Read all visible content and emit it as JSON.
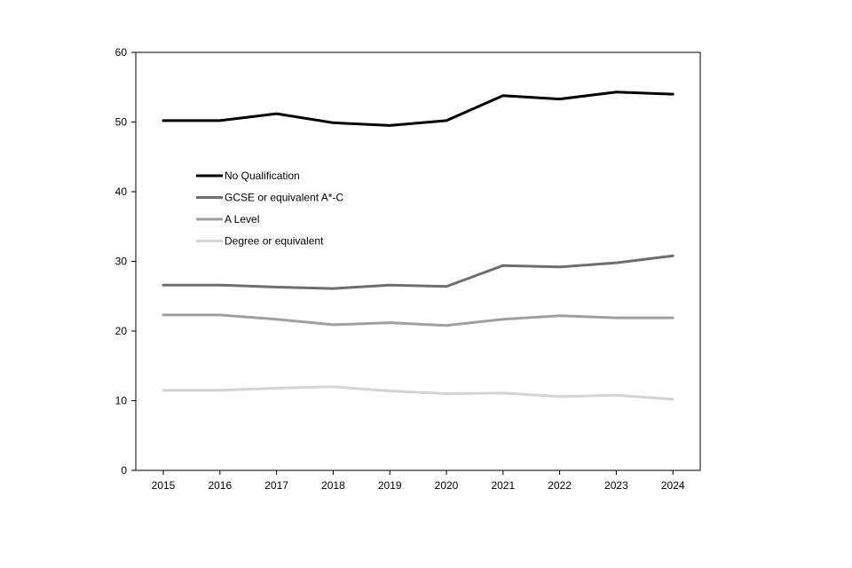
{
  "chart_data": {
    "type": "line",
    "title": "",
    "xlabel": "",
    "ylabel": "",
    "x": [
      "2015",
      "2016",
      "2017",
      "2018",
      "2019",
      "2020",
      "2021",
      "2022",
      "2023",
      "2024"
    ],
    "ylim": [
      0,
      60
    ],
    "yticks": [
      0,
      10,
      20,
      30,
      40,
      50,
      60
    ],
    "grid": false,
    "legend_position": "upper-left inside",
    "series": [
      {
        "name": "No Qualification",
        "color": "#000000",
        "values": [
          50.2,
          50.2,
          51.2,
          49.9,
          49.5,
          50.2,
          53.8,
          53.3,
          54.3,
          54.0
        ]
      },
      {
        "name": "GCSE or equivalent A*-C",
        "color": "#6e6e6e",
        "values": [
          26.6,
          26.6,
          26.3,
          26.1,
          26.6,
          26.4,
          29.4,
          29.2,
          29.8,
          30.8
        ]
      },
      {
        "name": "A Level",
        "color": "#a0a0a0",
        "values": [
          22.3,
          22.3,
          21.7,
          20.9,
          21.2,
          20.8,
          21.7,
          22.2,
          21.9,
          21.9
        ]
      },
      {
        "name": "Degree or equivalent",
        "color": "#d4d4d4",
        "values": [
          11.5,
          11.5,
          11.8,
          12.0,
          11.4,
          11.0,
          11.1,
          10.6,
          10.8,
          10.2
        ]
      }
    ]
  }
}
